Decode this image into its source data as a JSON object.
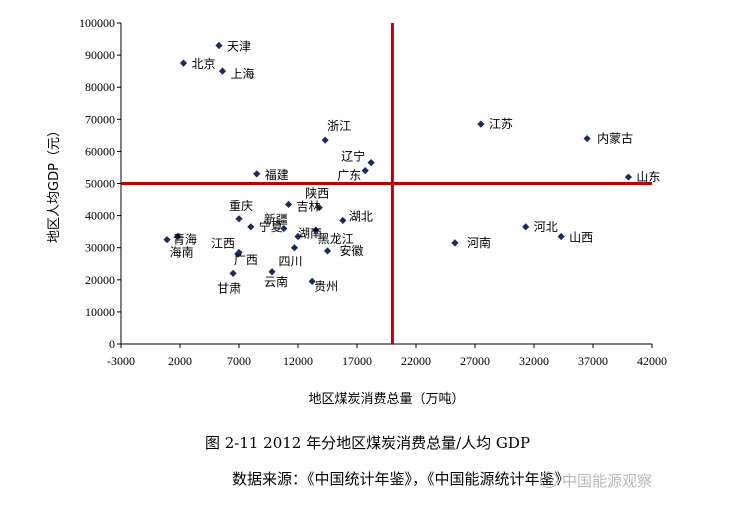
{
  "chart_data": {
    "type": "scatter",
    "xlabel": "地区煤炭消费总量（万吨）",
    "ylabel": "地区人均GDP（元）",
    "xlim": [
      -3000,
      42000
    ],
    "ylim": [
      0,
      100000
    ],
    "xticks": [
      "-3000",
      "2000",
      "7000",
      "12000",
      "17000",
      "22000",
      "27000",
      "32000",
      "37000",
      "42000"
    ],
    "yticks": [
      "0",
      "10000",
      "20000",
      "30000",
      "40000",
      "50000",
      "60000",
      "70000",
      "80000",
      "90000",
      "100000"
    ],
    "grid": false,
    "marker_color": "#1f2a5c",
    "reference_color": "#c00000",
    "reference_lines": {
      "x": 20000,
      "y": 50000
    },
    "points": [
      {
        "name": "天津",
        "x": 5300,
        "y": 93000
      },
      {
        "name": "北京",
        "x": 2300,
        "y": 87500
      },
      {
        "name": "上海",
        "x": 5600,
        "y": 85000
      },
      {
        "name": "江苏",
        "x": 27500,
        "y": 68500
      },
      {
        "name": "内蒙古",
        "x": 36500,
        "y": 64000
      },
      {
        "name": "浙江",
        "x": 14300,
        "y": 63500
      },
      {
        "name": "辽宁",
        "x": 18200,
        "y": 56500
      },
      {
        "name": "广东",
        "x": 17700,
        "y": 54000
      },
      {
        "name": "福建",
        "x": 8500,
        "y": 53000
      },
      {
        "name": "山东",
        "x": 40000,
        "y": 52000
      },
      {
        "name": "吉林",
        "x": 11200,
        "y": 43500
      },
      {
        "name": "陕西",
        "x": 13800,
        "y": 42500
      },
      {
        "name": "湖北",
        "x": 15800,
        "y": 38500
      },
      {
        "name": "重庆",
        "x": 7000,
        "y": 39000
      },
      {
        "name": "宁夏",
        "x": 8000,
        "y": 36500
      },
      {
        "name": "新疆",
        "x": 10800,
        "y": 36000
      },
      {
        "name": "黑龙江",
        "x": 13500,
        "y": 35500
      },
      {
        "name": "河北",
        "x": 31300,
        "y": 36500
      },
      {
        "name": "山西",
        "x": 34300,
        "y": 33500
      },
      {
        "name": "湖南",
        "x": 12000,
        "y": 33500
      },
      {
        "name": "青海",
        "x": 900,
        "y": 32500
      },
      {
        "name": "海南",
        "x": 1800,
        "y": 33500
      },
      {
        "name": "河南",
        "x": 25300,
        "y": 31500
      },
      {
        "name": "江西",
        "x": 7000,
        "y": 28500
      },
      {
        "name": "安徽",
        "x": 14500,
        "y": 29000
      },
      {
        "name": "四川",
        "x": 11700,
        "y": 30000
      },
      {
        "name": "广西",
        "x": 6900,
        "y": 28000
      },
      {
        "name": "甘肃",
        "x": 6500,
        "y": 22000
      },
      {
        "name": "云南",
        "x": 9800,
        "y": 22500
      },
      {
        "name": "贵州",
        "x": 13200,
        "y": 19500
      }
    ]
  },
  "caption": "图 2-11     2012 年分地区煤炭消费总量/人均 GDP",
  "source": "数据来源：《中国统计年鉴》，《中国能源统计年鉴》",
  "watermark": "中国能源观察"
}
